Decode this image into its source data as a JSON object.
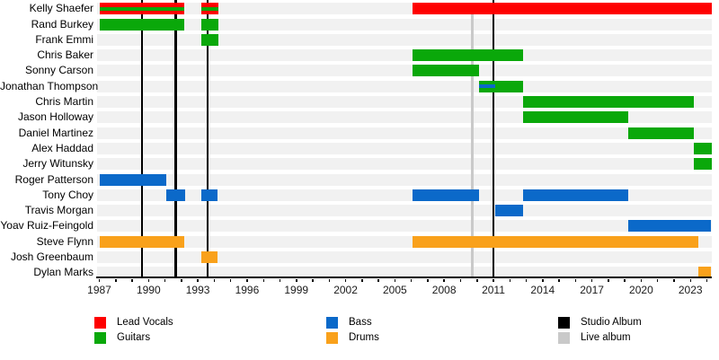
{
  "chart_data": {
    "type": "timeline",
    "description": "Band members timeline (Gantt-style) with tenure bars per member and vertical album release markers",
    "x_axis": {
      "start_year": 1987,
      "end_year": 2024.3,
      "major_tick_labels": [
        "1987",
        "1990",
        "1993",
        "1996",
        "1999",
        "2002",
        "2005",
        "2008",
        "2011",
        "2014",
        "2017",
        "2020",
        "2023"
      ],
      "minor_tick_interval_years": 1
    },
    "role_colors": {
      "vocals": "#fe0000",
      "guitars": "#0aa80a",
      "bass": "#0b69c9",
      "drums": "#f9a11b"
    },
    "marker_colors": {
      "studio_album": "#000000",
      "live_album": "#c9c9c9"
    },
    "row_background_color": "#f1f1f1",
    "albums": {
      "studio_album_years": [
        1989.6,
        1991.65,
        1993.6,
        2011.0
      ],
      "live_album_years": [
        2009.7
      ]
    },
    "members": [
      {
        "name": "Kelly Shaefer",
        "segments": [
          {
            "from": 1987.05,
            "to": 1992.2,
            "roles": [
              "vocals",
              "guitars"
            ]
          },
          {
            "from": 1993.2,
            "to": 1994.25,
            "roles": [
              "vocals",
              "guitars"
            ]
          },
          {
            "from": 2006.1,
            "to": 2024.3,
            "roles": [
              "vocals"
            ]
          }
        ]
      },
      {
        "name": "Rand Burkey",
        "segments": [
          {
            "from": 1987.05,
            "to": 1992.2,
            "roles": [
              "guitars"
            ]
          },
          {
            "from": 1993.2,
            "to": 1994.25,
            "roles": [
              "guitars"
            ]
          }
        ]
      },
      {
        "name": "Frank Emmi",
        "segments": [
          {
            "from": 1993.2,
            "to": 1994.25,
            "roles": [
              "guitars"
            ]
          }
        ]
      },
      {
        "name": "Chris Baker",
        "segments": [
          {
            "from": 2006.1,
            "to": 2012.8,
            "roles": [
              "guitars"
            ]
          }
        ]
      },
      {
        "name": "Sonny Carson",
        "segments": [
          {
            "from": 2006.1,
            "to": 2010.1,
            "roles": [
              "guitars"
            ]
          }
        ]
      },
      {
        "name": "Jonathan Thompson",
        "segments": [
          {
            "from": 2010.1,
            "to": 2011.1,
            "roles": [
              "guitars",
              "bass"
            ]
          },
          {
            "from": 2011.1,
            "to": 2012.8,
            "roles": [
              "guitars"
            ]
          }
        ]
      },
      {
        "name": "Chris Martin",
        "segments": [
          {
            "from": 2012.8,
            "to": 2023.2,
            "roles": [
              "guitars"
            ]
          }
        ]
      },
      {
        "name": "Jason Holloway",
        "segments": [
          {
            "from": 2012.8,
            "to": 2019.2,
            "roles": [
              "guitars"
            ]
          }
        ]
      },
      {
        "name": "Daniel Martinez",
        "segments": [
          {
            "from": 2019.2,
            "to": 2023.2,
            "roles": [
              "guitars"
            ]
          }
        ]
      },
      {
        "name": "Alex Haddad",
        "segments": [
          {
            "from": 2023.2,
            "to": 2024.3,
            "roles": [
              "guitars"
            ]
          }
        ]
      },
      {
        "name": "Jerry Witunsky",
        "segments": [
          {
            "from": 2023.2,
            "to": 2024.3,
            "roles": [
              "guitars"
            ]
          }
        ]
      },
      {
        "name": "Roger Patterson",
        "segments": [
          {
            "from": 1987.05,
            "to": 1991.1,
            "roles": [
              "bass"
            ]
          }
        ]
      },
      {
        "name": "Tony Choy",
        "segments": [
          {
            "from": 1991.1,
            "to": 1992.2,
            "roles": [
              "bass"
            ]
          },
          {
            "from": 1993.2,
            "to": 1994.2,
            "roles": [
              "bass"
            ]
          },
          {
            "from": 2006.1,
            "to": 2010.1,
            "roles": [
              "bass"
            ]
          },
          {
            "from": 2012.8,
            "to": 2019.2,
            "roles": [
              "bass"
            ]
          }
        ]
      },
      {
        "name": "Travis Morgan",
        "segments": [
          {
            "from": 2011.1,
            "to": 2012.8,
            "roles": [
              "bass"
            ]
          }
        ]
      },
      {
        "name": "Yoav Ruiz-Feingold",
        "segments": [
          {
            "from": 2019.2,
            "to": 2024.25,
            "roles": [
              "bass"
            ]
          }
        ]
      },
      {
        "name": "Steve Flynn",
        "segments": [
          {
            "from": 1987.05,
            "to": 1992.2,
            "roles": [
              "drums"
            ]
          },
          {
            "from": 2006.1,
            "to": 2023.5,
            "roles": [
              "drums"
            ]
          }
        ]
      },
      {
        "name": "Josh Greenbaum",
        "segments": [
          {
            "from": 1993.2,
            "to": 1994.2,
            "roles": [
              "drums"
            ]
          }
        ]
      },
      {
        "name": "Dylan Marks",
        "segments": [
          {
            "from": 2023.5,
            "to": 2024.25,
            "roles": [
              "drums"
            ]
          }
        ]
      }
    ],
    "legend": [
      {
        "label": "Lead Vocals",
        "color_key": "vocals",
        "column": 0,
        "row": 0
      },
      {
        "label": "Guitars",
        "color_key": "guitars",
        "column": 0,
        "row": 1
      },
      {
        "label": "Bass",
        "color_key": "bass",
        "column": 1,
        "row": 0
      },
      {
        "label": "Drums",
        "color_key": "drums",
        "column": 1,
        "row": 1
      },
      {
        "label": "Studio Album",
        "color_key": "studio_album",
        "column": 2,
        "row": 0
      },
      {
        "label": "Live album",
        "color_key": "live_album",
        "column": 2,
        "row": 1
      }
    ],
    "legend_position": "bottom"
  }
}
